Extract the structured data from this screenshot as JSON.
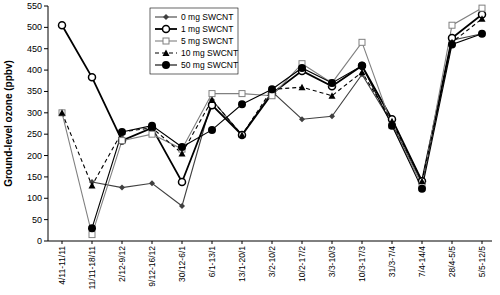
{
  "chart_data": {
    "type": "line",
    "y_label": "Ground-level ozone (ppbv)",
    "categories": [
      "4/11-11/11",
      "11/11-18/11",
      "2/12-9/12",
      "9/12-16/12",
      "30/12-6/1",
      "6/1-13/1",
      "13/1-20/1",
      "3/2-10/2",
      "10/2-17/2",
      "3/3-10/3",
      "10/3-17/3",
      "31/3-7/4",
      "7/4-14/4",
      "28/4-5/5",
      "5/5-12/5"
    ],
    "series": [
      {
        "name": "0 mg SWCNT",
        "color": "#404040",
        "marker": "diamond",
        "line_style": "solid",
        "values": [
          null,
          138,
          125,
          135,
          82,
          330,
          248,
          350,
          285,
          292,
          390,
          275,
          135,
          470,
          485
        ]
      },
      {
        "name": "1 mg SWCNT",
        "color": "#000000",
        "marker": "circle-open",
        "line_style": "solid",
        "values": [
          505,
          383,
          235,
          265,
          138,
          318,
          248,
          345,
          398,
          362,
          410,
          285,
          140,
          475,
          530
        ]
      },
      {
        "name": "5 mg SWCNT",
        "color": "#808080",
        "marker": "square-open",
        "line_style": "solid",
        "values": [
          300,
          15,
          235,
          250,
          215,
          345,
          345,
          340,
          415,
          370,
          465,
          270,
          130,
          505,
          545
        ]
      },
      {
        "name": "10 mg SWCNT",
        "color": "#000000",
        "marker": "triangle",
        "line_style": "dashed",
        "values": [
          300,
          130,
          255,
          265,
          205,
          330,
          248,
          355,
          360,
          340,
          395,
          280,
          140,
          465,
          520
        ]
      },
      {
        "name": "50 mg SWCNT",
        "color": "#000000",
        "marker": "circle",
        "line_style": "solid",
        "values": [
          null,
          30,
          255,
          270,
          220,
          260,
          320,
          355,
          405,
          370,
          410,
          270,
          122,
          460,
          485
        ]
      }
    ],
    "ylim": [
      0,
      550
    ],
    "yticks": [
      0,
      50,
      100,
      150,
      200,
      250,
      300,
      350,
      400,
      450,
      500,
      550
    ],
    "grid": false,
    "legend": "upper-left"
  }
}
